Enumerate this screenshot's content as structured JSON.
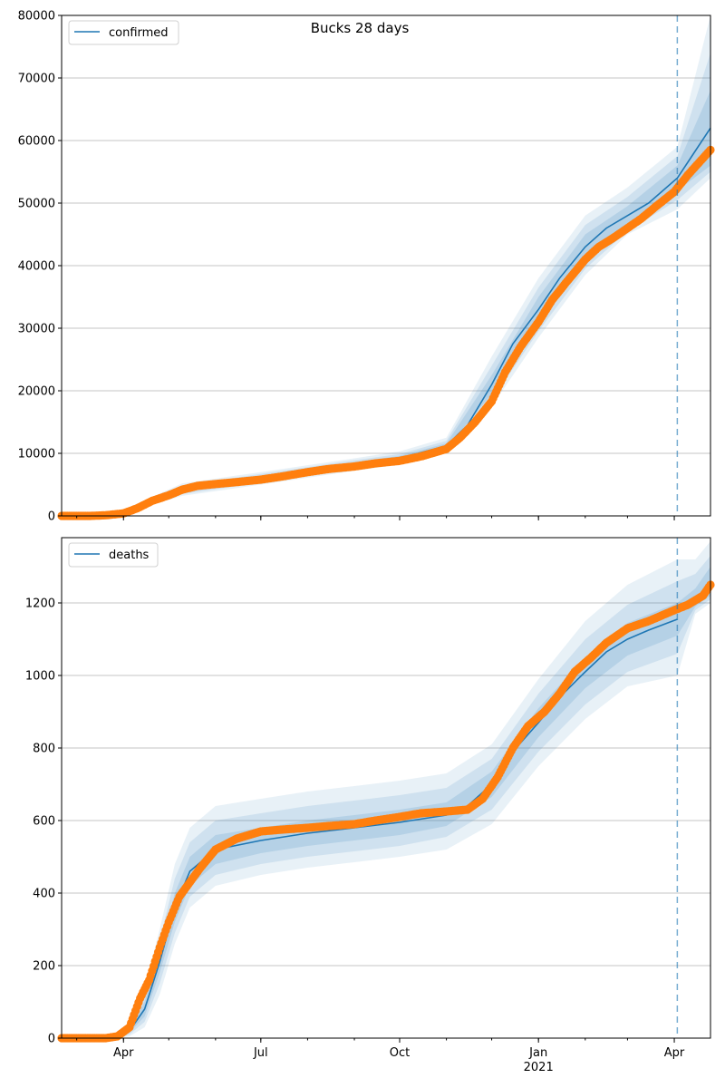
{
  "figure": {
    "title": "Bucks 28 days"
  },
  "colors": {
    "model": "#1f77b4",
    "observed": "#ff7f0e",
    "band": "#1f77b4",
    "grid": "#b0b0b0",
    "cutoff": "#1f77b4"
  },
  "x_axis": {
    "domain": [
      "2020-02-20",
      "2021-04-25"
    ],
    "ticks": [
      {
        "date": "2020-04-01",
        "label": "Apr"
      },
      {
        "date": "2020-07-01",
        "label": "Jul"
      },
      {
        "date": "2020-10-01",
        "label": "Oct"
      },
      {
        "date": "2021-01-01",
        "label": "Jan",
        "sublabel": "2021"
      },
      {
        "date": "2021-04-01",
        "label": "Apr"
      }
    ]
  },
  "chart_data": [
    {
      "type": "line",
      "title": "Bucks 28 days",
      "legend": {
        "label": "confirmed",
        "placement": "top-left"
      },
      "ylim": [
        0,
        80000
      ],
      "yticks": [
        0,
        10000,
        20000,
        30000,
        40000,
        50000,
        60000,
        70000,
        80000
      ],
      "grid": "y",
      "forecast_start": "2021-04-03",
      "model": {
        "x": [
          "2020-02-20",
          "2020-03-15",
          "2020-04-01",
          "2020-04-20",
          "2020-05-10",
          "2020-06-01",
          "2020-07-01",
          "2020-08-01",
          "2020-09-01",
          "2020-10-01",
          "2020-11-01",
          "2020-11-15",
          "2020-12-01",
          "2020-12-15",
          "2021-01-01",
          "2021-01-15",
          "2021-02-01",
          "2021-02-15",
          "2021-03-01",
          "2021-03-15",
          "2021-04-03",
          "2021-04-25"
        ],
        "y": [
          0,
          50,
          700,
          2300,
          4200,
          5400,
          6000,
          7300,
          8200,
          9200,
          11200,
          14500,
          21000,
          27500,
          33000,
          38000,
          43000,
          46000,
          48000,
          50000,
          54000,
          62000
        ]
      },
      "bands": {
        "x": [
          "2020-02-20",
          "2020-04-01",
          "2020-05-10",
          "2020-07-01",
          "2020-09-01",
          "2020-10-01",
          "2020-11-01",
          "2020-12-01",
          "2021-01-01",
          "2021-02-01",
          "2021-03-01",
          "2021-04-03",
          "2021-04-25"
        ],
        "inner": {
          "low": [
            0,
            600,
            3800,
            5600,
            7800,
            8800,
            10800,
            19500,
            31000,
            41000,
            46500,
            52000,
            56000
          ],
          "high": [
            0,
            800,
            4600,
            6400,
            8600,
            9600,
            11600,
            22500,
            35000,
            45000,
            49500,
            56000,
            68000
          ]
        },
        "outer": {
          "low": [
            0,
            500,
            3500,
            5300,
            7500,
            8500,
            10400,
            18500,
            29500,
            39500,
            45500,
            50500,
            55000
          ],
          "high": [
            0,
            900,
            4900,
            6700,
            8900,
            9900,
            12000,
            24000,
            36500,
            46500,
            51000,
            57500,
            74000
          ]
        },
        "outermost": {
          "low": [
            0,
            400,
            3200,
            5000,
            7200,
            8200,
            10000,
            17500,
            28500,
            38500,
            45000,
            49000,
            54000
          ],
          "high": [
            0,
            1000,
            5200,
            7000,
            9200,
            10300,
            12500,
            25500,
            38000,
            48000,
            52500,
            59000,
            80000
          ]
        }
      },
      "observed": {
        "x": [
          "2020-02-20",
          "2020-03-10",
          "2020-03-20",
          "2020-04-01",
          "2020-04-10",
          "2020-04-20",
          "2020-05-01",
          "2020-05-10",
          "2020-05-20",
          "2020-06-01",
          "2020-06-15",
          "2020-07-01",
          "2020-07-15",
          "2020-08-01",
          "2020-08-15",
          "2020-09-01",
          "2020-09-15",
          "2020-10-01",
          "2020-10-15",
          "2020-11-01",
          "2020-11-10",
          "2020-11-20",
          "2020-12-01",
          "2020-12-10",
          "2020-12-20",
          "2021-01-01",
          "2021-01-10",
          "2021-01-20",
          "2021-02-01",
          "2021-02-10",
          "2021-02-20",
          "2021-03-01",
          "2021-03-10",
          "2021-03-20",
          "2021-04-01",
          "2021-04-10",
          "2021-04-25"
        ],
        "y": [
          0,
          0,
          100,
          400,
          1200,
          2400,
          3300,
          4200,
          4800,
          5100,
          5400,
          5800,
          6300,
          7000,
          7500,
          7900,
          8400,
          8800,
          9500,
          10700,
          12500,
          15000,
          18300,
          23000,
          27000,
          31000,
          34500,
          37500,
          41000,
          43000,
          44500,
          46000,
          47500,
          49500,
          51800,
          54500,
          58500
        ]
      }
    },
    {
      "type": "line",
      "legend": {
        "label": "deaths",
        "placement": "top-left"
      },
      "ylim": [
        0,
        1380
      ],
      "yticks": [
        0,
        200,
        400,
        600,
        800,
        1000,
        1200
      ],
      "grid": "y",
      "forecast_start": "2021-04-03",
      "model": {
        "x": [
          "2020-02-20",
          "2020-03-25",
          "2020-04-05",
          "2020-04-15",
          "2020-04-25",
          "2020-05-05",
          "2020-05-15",
          "2020-06-01",
          "2020-07-01",
          "2020-08-01",
          "2020-09-01",
          "2020-10-01",
          "2020-11-01",
          "2020-11-15",
          "2020-12-01",
          "2020-12-15",
          "2021-01-01",
          "2021-01-15",
          "2021-02-01",
          "2021-02-15",
          "2021-03-01",
          "2021-03-15",
          "2021-04-03"
        ],
        "y": [
          0,
          0,
          20,
          80,
          210,
          360,
          460,
          520,
          545,
          565,
          580,
          595,
          615,
          640,
          700,
          790,
          870,
          940,
          1010,
          1065,
          1100,
          1125,
          1155
        ]
      },
      "model_forecast": {
        "x": [
          "2021-04-03",
          "2021-04-15",
          "2021-04-25"
        ],
        "y": [
          1180,
          1210,
          1250
        ]
      },
      "bands": {
        "x": [
          "2020-02-20",
          "2020-03-25",
          "2020-04-05",
          "2020-04-15",
          "2020-04-25",
          "2020-05-05",
          "2020-05-15",
          "2020-06-01",
          "2020-07-01",
          "2020-08-01",
          "2020-09-01",
          "2020-10-01",
          "2020-11-01",
          "2020-12-01",
          "2021-01-01",
          "2021-02-01",
          "2021-03-01",
          "2021-04-03",
          "2021-04-15",
          "2021-04-25"
        ],
        "inner": {
          "low": [
            0,
            0,
            15,
            60,
            180,
            320,
            420,
            480,
            510,
            530,
            545,
            560,
            585,
            665,
            830,
            965,
            1055,
            1110,
            1190,
            1220
          ],
          "high": [
            0,
            0,
            25,
            100,
            240,
            400,
            500,
            560,
            580,
            600,
            615,
            630,
            650,
            735,
            910,
            1050,
            1145,
            1200,
            1240,
            1300
          ]
        },
        "outer": {
          "low": [
            0,
            0,
            10,
            45,
            150,
            290,
            390,
            450,
            480,
            500,
            515,
            530,
            555,
            630,
            790,
            920,
            1010,
            1060,
            1180,
            1210
          ],
          "high": [
            0,
            0,
            30,
            120,
            270,
            440,
            540,
            600,
            620,
            640,
            655,
            670,
            690,
            770,
            950,
            1100,
            1195,
            1260,
            1280,
            1330
          ]
        },
        "outermost": {
          "low": [
            0,
            0,
            5,
            30,
            120,
            260,
            360,
            420,
            450,
            470,
            485,
            500,
            520,
            590,
            750,
            880,
            970,
            1000,
            1170,
            1200
          ],
          "high": [
            0,
            0,
            40,
            140,
            300,
            480,
            580,
            640,
            660,
            680,
            695,
            710,
            730,
            810,
            990,
            1150,
            1250,
            1320,
            1320,
            1370
          ]
        }
      },
      "observed": {
        "x": [
          "2020-02-20",
          "2020-03-20",
          "2020-03-28",
          "2020-04-05",
          "2020-04-12",
          "2020-04-18",
          "2020-04-25",
          "2020-05-01",
          "2020-05-08",
          "2020-05-15",
          "2020-05-22",
          "2020-06-01",
          "2020-06-15",
          "2020-07-01",
          "2020-07-15",
          "2020-08-01",
          "2020-08-15",
          "2020-09-01",
          "2020-09-15",
          "2020-10-01",
          "2020-10-15",
          "2020-11-01",
          "2020-11-15",
          "2020-11-25",
          "2020-12-05",
          "2020-12-15",
          "2020-12-25",
          "2021-01-05",
          "2021-01-15",
          "2021-01-25",
          "2021-02-05",
          "2021-02-15",
          "2021-03-01",
          "2021-03-15",
          "2021-04-01",
          "2021-04-10",
          "2021-04-20",
          "2021-04-25"
        ],
        "y": [
          0,
          0,
          5,
          30,
          110,
          160,
          250,
          320,
          390,
          430,
          470,
          520,
          550,
          570,
          575,
          580,
          585,
          590,
          600,
          610,
          620,
          625,
          630,
          660,
          720,
          800,
          860,
          900,
          950,
          1010,
          1050,
          1090,
          1130,
          1150,
          1180,
          1195,
          1220,
          1250
        ]
      }
    }
  ]
}
